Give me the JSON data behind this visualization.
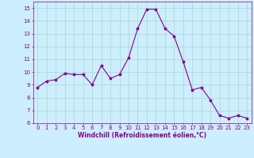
{
  "x": [
    0,
    1,
    2,
    3,
    4,
    5,
    6,
    7,
    8,
    9,
    10,
    11,
    12,
    13,
    14,
    15,
    16,
    17,
    18,
    19,
    20,
    21,
    22,
    23
  ],
  "y": [
    8.8,
    9.3,
    9.4,
    9.9,
    9.8,
    9.8,
    9.0,
    10.5,
    9.5,
    9.8,
    11.1,
    13.4,
    14.9,
    14.9,
    13.4,
    12.8,
    10.8,
    8.6,
    8.8,
    7.8,
    6.6,
    6.4,
    6.6,
    6.4
  ],
  "line_color": "#880088",
  "marker": "*",
  "marker_size": 2.5,
  "bg_color": "#cceeff",
  "grid_color": "#aaddcc",
  "xlabel": "Windchill (Refroidissement éolien,°C)",
  "xlabel_color": "#880088",
  "tick_color": "#880088",
  "label_fontsize": 5.0,
  "xlabel_fontsize": 5.5,
  "ylim": [
    6,
    15.5
  ],
  "xlim": [
    -0.5,
    23.5
  ],
  "yticks": [
    6,
    7,
    8,
    9,
    10,
    11,
    12,
    13,
    14,
    15
  ],
  "xticks": [
    0,
    1,
    2,
    3,
    4,
    5,
    6,
    7,
    8,
    9,
    10,
    11,
    12,
    13,
    14,
    15,
    16,
    17,
    18,
    19,
    20,
    21,
    22,
    23
  ]
}
